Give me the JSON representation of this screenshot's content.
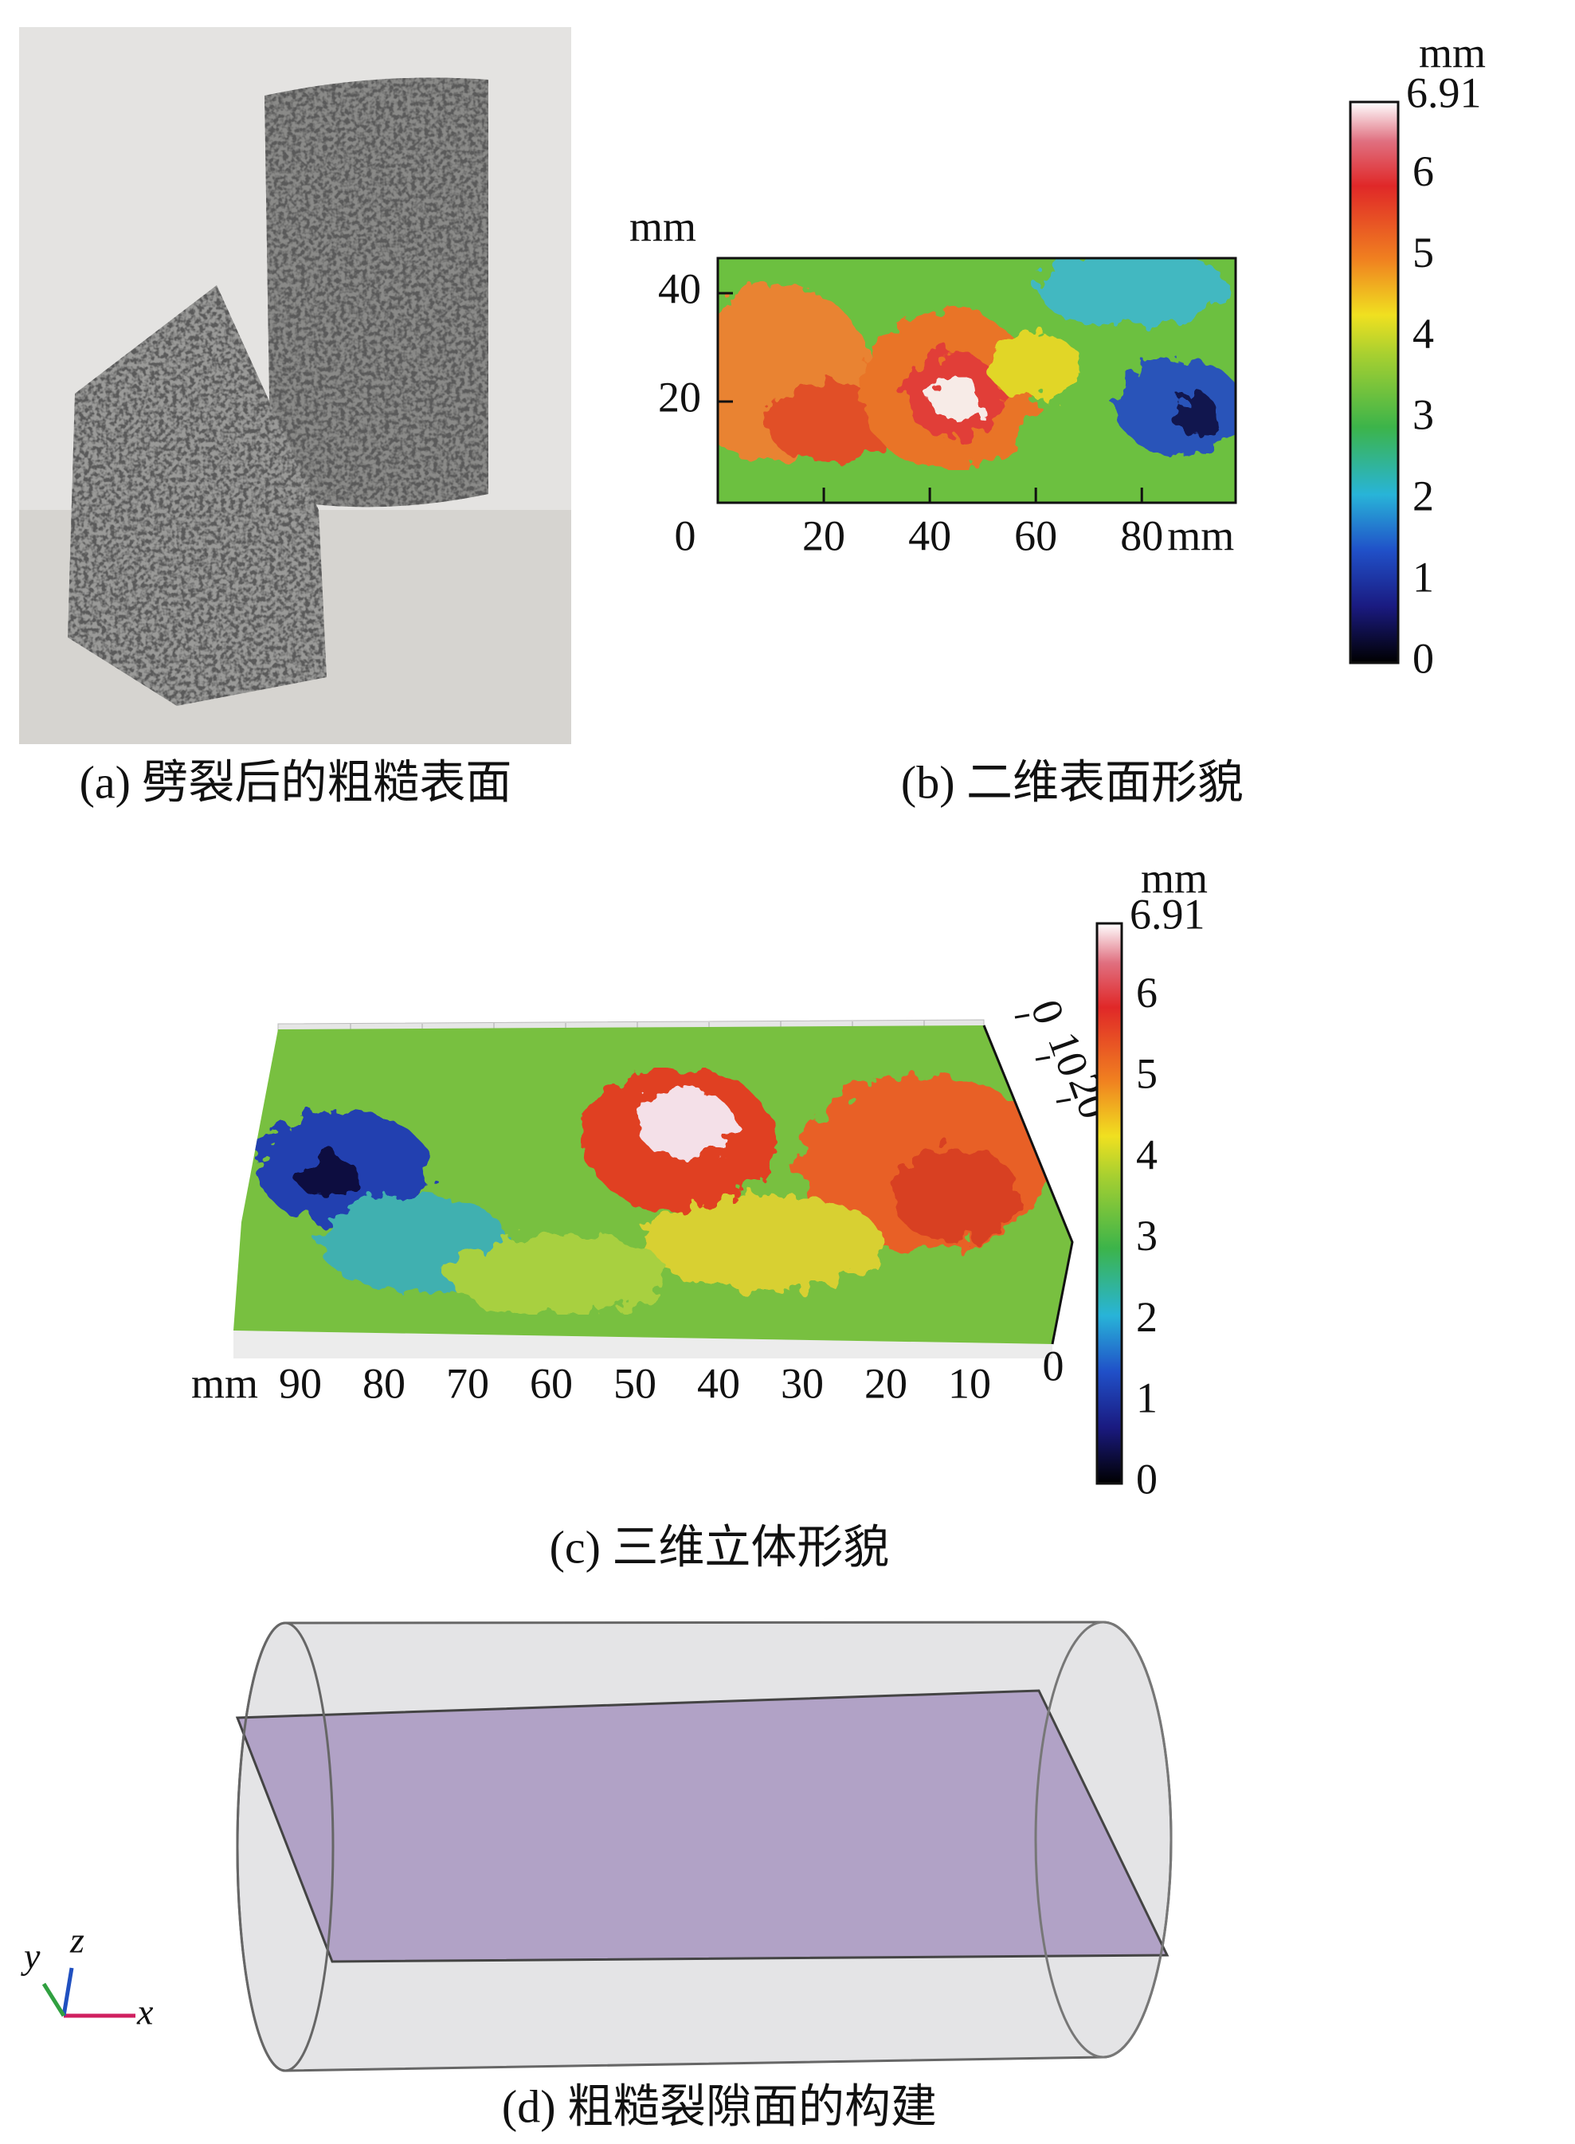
{
  "panels": {
    "a": {
      "caption": "(a) 劈裂后的粗糙表面"
    },
    "b": {
      "caption": "(b) 二维表面形貌",
      "x_unit": "mm",
      "y_unit": "mm",
      "origin": 0,
      "x_ticks": [
        20,
        40,
        60,
        80
      ],
      "y_ticks": [
        20,
        40
      ],
      "colorbar": {
        "unit": "mm",
        "max_label": 6.91,
        "ticks": [
          0,
          1,
          2,
          3,
          4,
          5,
          6
        ]
      }
    },
    "c": {
      "caption": "(c) 三维立体形貌",
      "x_unit": "mm",
      "x_ticks": [
        90,
        80,
        70,
        60,
        50,
        40,
        30,
        20,
        10,
        0
      ],
      "depth_ticks": [
        0,
        10,
        20
      ],
      "colorbar": {
        "unit": "mm",
        "max_label": 6.91,
        "ticks": [
          0,
          1,
          2,
          3,
          4,
          5,
          6
        ]
      }
    },
    "d": {
      "caption": "(d) 粗糙裂隙面的构建",
      "axes": {
        "y": "y",
        "z": "z",
        "x": "x"
      }
    }
  }
}
